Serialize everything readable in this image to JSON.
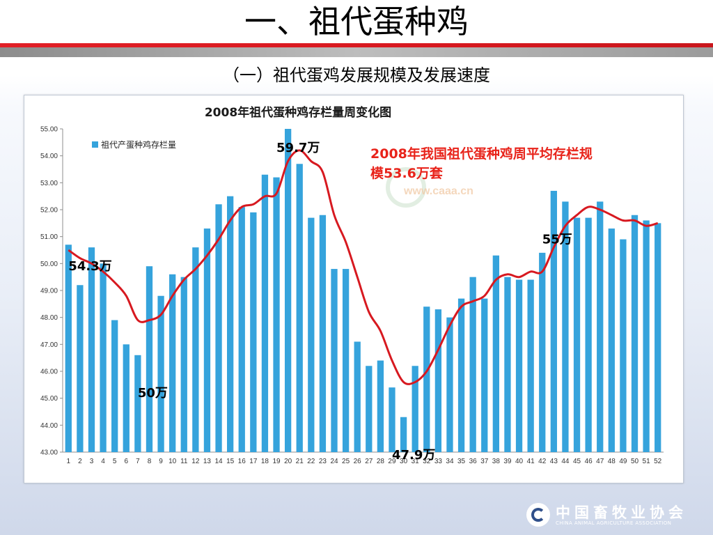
{
  "slide": {
    "title": "一、祖代蛋种鸡",
    "subtitle": "（一）祖代蛋鸡发展规模及发展速度"
  },
  "footer": {
    "org_cn": "中国畜牧业协会",
    "org_en": "CHINA ANIMAL AGRICULTURE ASSOCIATION"
  },
  "watermark": "www.caaa.cn",
  "colors": {
    "bar": "#35a3dc",
    "line": "#d71920",
    "note": "#e8231a",
    "title_rule": "#e11f26"
  },
  "chart_data": {
    "type": "bar",
    "title": "2008年祖代蛋种鸡存栏量周变化图",
    "xlabel": "",
    "ylabel": "",
    "ylim": [
      43,
      55
    ],
    "yticks": [
      "43.00",
      "44.00",
      "45.00",
      "46.00",
      "47.00",
      "48.00",
      "49.00",
      "50.00",
      "51.00",
      "52.00",
      "53.00",
      "54.00",
      "55.00"
    ],
    "grid": false,
    "legend_position": "top-left",
    "categories": [
      "1",
      "2",
      "3",
      "4",
      "5",
      "6",
      "7",
      "8",
      "9",
      "10",
      "11",
      "12",
      "13",
      "14",
      "15",
      "16",
      "17",
      "18",
      "19",
      "20",
      "21",
      "22",
      "23",
      "24",
      "25",
      "26",
      "27",
      "28",
      "29",
      "30",
      "31",
      "32",
      "33",
      "34",
      "35",
      "36",
      "37",
      "38",
      "39",
      "40",
      "41",
      "42",
      "43",
      "44",
      "45",
      "46",
      "47",
      "48",
      "49",
      "50",
      "51",
      "52"
    ],
    "series": [
      {
        "name": "祖代产蛋种鸡存栏量",
        "type": "bar",
        "values": [
          50.7,
          49.2,
          50.6,
          50.0,
          47.9,
          47.0,
          46.6,
          49.9,
          48.8,
          49.6,
          49.5,
          50.6,
          51.3,
          52.2,
          52.5,
          52.1,
          51.9,
          53.3,
          53.2,
          55.0,
          53.7,
          51.7,
          51.8,
          49.8,
          49.8,
          47.1,
          46.2,
          46.4,
          45.4,
          44.3,
          46.2,
          48.4,
          48.3,
          48.0,
          48.7,
          49.5,
          48.7,
          50.3,
          49.5,
          49.4,
          49.4,
          50.4,
          52.7,
          52.3,
          51.7,
          51.7,
          52.3,
          51.3,
          50.9,
          51.8,
          51.6,
          51.5
        ]
      },
      {
        "name": "",
        "type": "line",
        "values": [
          50.5,
          50.2,
          50.0,
          49.7,
          49.3,
          48.8,
          47.9,
          47.9,
          48.1,
          48.8,
          49.4,
          49.8,
          50.3,
          50.9,
          51.6,
          52.1,
          52.2,
          52.5,
          52.6,
          53.8,
          54.2,
          53.8,
          53.4,
          51.8,
          50.8,
          49.5,
          48.2,
          47.5,
          46.4,
          45.6,
          45.6,
          46.0,
          46.8,
          47.7,
          48.4,
          48.6,
          48.8,
          49.4,
          49.6,
          49.5,
          49.7,
          49.7,
          50.6,
          51.4,
          51.8,
          52.1,
          52.0,
          51.8,
          51.6,
          51.6,
          51.4,
          51.5
        ]
      }
    ],
    "annotations": [
      {
        "text": "59.7万",
        "x": 19,
        "y": 54.3,
        "color": "#000000"
      },
      {
        "text": "54.3万",
        "x": 1,
        "y": 49.9,
        "color": "#000000"
      },
      {
        "text": "50万",
        "x": 7,
        "y": 45.2,
        "color": "#000000"
      },
      {
        "text": "47.9万",
        "x": 29,
        "y": 42.9,
        "color": "#000000"
      },
      {
        "text": "55万",
        "x": 42,
        "y": 50.9,
        "color": "#000000"
      }
    ],
    "note_lines": [
      "2008年我国祖代蛋种鸡周平均存栏规",
      "模53.6万套"
    ]
  }
}
